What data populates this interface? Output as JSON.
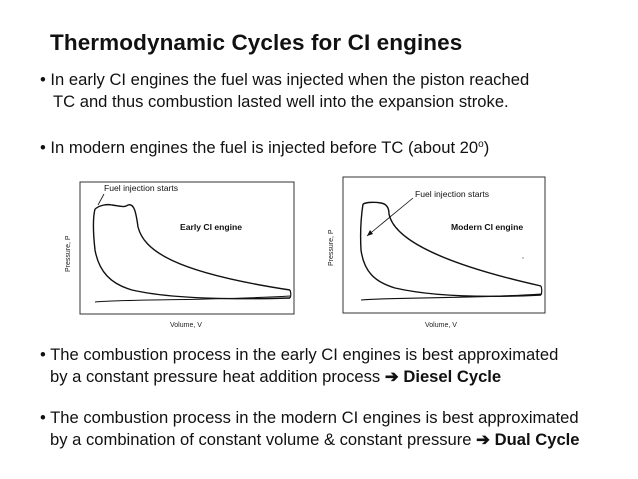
{
  "title": "Thermodynamic Cycles for CI engines",
  "bullets": {
    "b1_line1": "• In early CI engines the fuel was injected when the piston reached",
    "b1_line2": "TC and thus combustion lasted well into the expansion stroke.",
    "b2_text": "• In modern engines the fuel is injected before TC (about 20",
    "b2_sup": "o",
    "b2_end": ")",
    "b3_line1": "• The combustion process in the early CI engines is best approximated",
    "b3_line2_pre": "by a constant pressure heat addition process ",
    "b3_arrow": "➔",
    "b3_bold": " Diesel Cycle",
    "b4_line1": "• The combustion process in the modern CI engines is best approximated",
    "b4_line2_pre": "by a combination of constant volume & constant pressure ",
    "b4_arrow": "➔",
    "b4_bold": " Dual Cycle"
  },
  "figures": {
    "early": {
      "annotation": "Fuel injection starts",
      "engine_label": "Early CI engine",
      "y_axis_label": "Pressure, P",
      "x_axis_label": "Volume, V"
    },
    "modern": {
      "annotation": "Fuel injection starts",
      "engine_label": "Modern CI engine",
      "y_axis_label": "Pressure, P",
      "x_axis_label": "Volume, V"
    }
  }
}
